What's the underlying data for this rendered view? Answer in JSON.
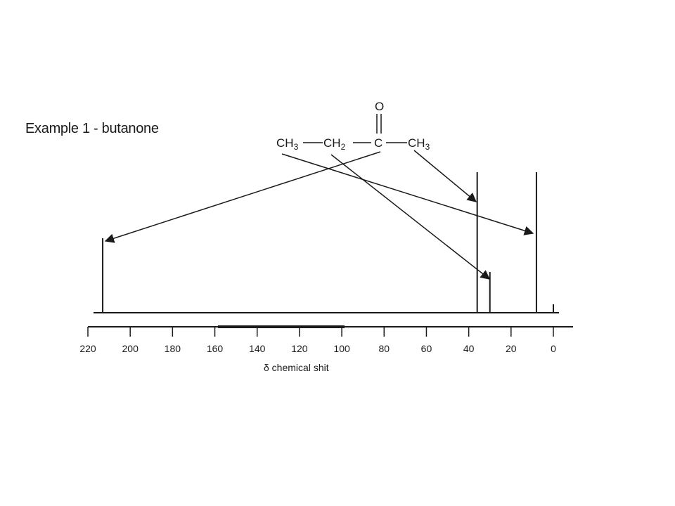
{
  "title": "Example 1 - butanone",
  "chart_data": {
    "type": "bar",
    "xlabel": "δ  chemical shit",
    "x_ticks": [
      220,
      200,
      180,
      160,
      140,
      120,
      100,
      80,
      60,
      40,
      20,
      0
    ],
    "xlim": [
      220,
      0
    ],
    "peaks": [
      {
        "shift": 213,
        "height": 0.53
      },
      {
        "shift": 36,
        "height": 1.0
      },
      {
        "shift": 30,
        "height": 0.29
      },
      {
        "shift": 8,
        "height": 1.0
      },
      {
        "shift": 0,
        "height": 0.06
      }
    ]
  },
  "molecule": {
    "groups": [
      {
        "main": "CH",
        "sub": "3"
      },
      {
        "main": "CH",
        "sub": "2"
      },
      {
        "main": "C",
        "sub": ""
      },
      {
        "main": "CH",
        "sub": "3"
      }
    ],
    "oxygen": "O"
  }
}
